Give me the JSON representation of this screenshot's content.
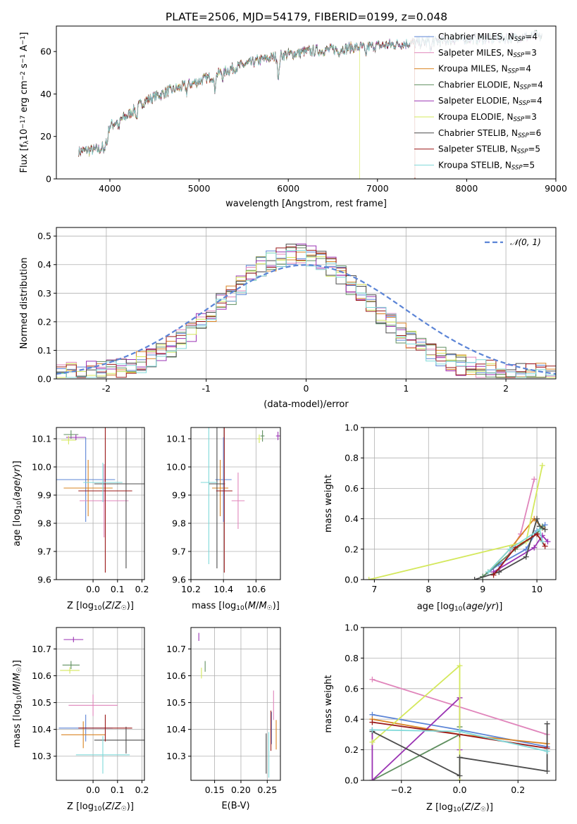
{
  "figure_title": "PLATE=2506, MJD=54179, FIBERID=0199, z=0.048",
  "colors": {
    "Chabrier MILES": "#5b84d6",
    "Salpeter MILES": "#e085bb",
    "Kroupa MILES": "#d98423",
    "Chabrier ELODIE": "#5f8f5f",
    "Salpeter ELODIE": "#9a33b3",
    "Kroupa ELODIE": "#d4e85c",
    "Chabrier STELIB": "#4c4c4c",
    "Salpeter STELIB": "#9b1a1a",
    "Kroupa STELIB": "#7fd9d9",
    "gauss": "#5b84d6",
    "data": "#9a9a9a"
  },
  "chart_data": [
    {
      "id": "spectrum",
      "type": "line",
      "title": "PLATE=2506, MJD=54179, FIBERID=0199, z=0.048",
      "xlabel": "wavelength [Angstrom, rest frame]",
      "ylabel": "Flux [f_λ 10^-17 erg cm^-2 s^-1 A^-1]",
      "xlim": [
        3400,
        9000
      ],
      "ylim": [
        0,
        72
      ],
      "xticks": [
        "4000",
        "5000",
        "6000",
        "7000",
        "8000",
        "9000"
      ],
      "yticks": [
        "0",
        "20",
        "40",
        "60"
      ],
      "grid": false,
      "legend_position": "top-right",
      "continuum_x": [
        3650,
        3900,
        4000,
        4200,
        4400,
        4700,
        5000,
        5300,
        5600,
        5900,
        6200,
        6500,
        6800,
        7100,
        7400,
        7700,
        8000,
        8300,
        8600,
        8850
      ],
      "continuum_y": [
        13,
        14,
        25,
        30,
        37,
        42,
        46,
        51,
        55,
        58,
        60,
        61,
        62,
        63,
        64,
        65,
        66,
        66,
        67,
        67
      ],
      "model_end_wavelength": {
        "Kroupa ELODIE": 6800,
        "Salpeter STELIB": 7420,
        "Kroupa MILES": 7420
      },
      "legend": [
        {
          "name": "Chabrier MILES",
          "label": "Chabrier MILES, N",
          "sub": "SSP",
          "n": "=4"
        },
        {
          "name": "Salpeter MILES",
          "label": "Salpeter MILES, N",
          "sub": "SSP",
          "n": "=3"
        },
        {
          "name": "Kroupa MILES",
          "label": "Kroupa MILES, N",
          "sub": "SSP",
          "n": "=4"
        },
        {
          "name": "Chabrier ELODIE",
          "label": "Chabrier ELODIE, N",
          "sub": "SSP",
          "n": "=4"
        },
        {
          "name": "Salpeter ELODIE",
          "label": "Salpeter ELODIE, N",
          "sub": "SSP",
          "n": "=4"
        },
        {
          "name": "Kroupa ELODIE",
          "label": "Kroupa ELODIE, N",
          "sub": "SSP",
          "n": "=3"
        },
        {
          "name": "Chabrier STELIB",
          "label": "Chabrier STELIB, N",
          "sub": "SSP",
          "n": "=6"
        },
        {
          "name": "Salpeter STELIB",
          "label": "Salpeter STELIB, N",
          "sub": "SSP",
          "n": "=5"
        },
        {
          "name": "Kroupa STELIB",
          "label": "Kroupa STELIB, N",
          "sub": "SSP",
          "n": "=5"
        }
      ]
    },
    {
      "id": "residuals",
      "type": "histogram",
      "xlabel": "(data-model)/error",
      "ylabel": "Normed distribution",
      "xlim": [
        -2.5,
        2.5
      ],
      "ylim": [
        0,
        0.53
      ],
      "xticks": [
        "-2",
        "-1",
        "0",
        "1",
        "2"
      ],
      "yticks": [
        "0.0",
        "0.1",
        "0.2",
        "0.3",
        "0.4",
        "0.5"
      ],
      "grid": true,
      "legend_position": "top-right",
      "legend_label": "𝒩(0, 1)",
      "bin_width": 0.1,
      "bin_start": -2.5
    },
    {
      "id": "age_vs_Z",
      "type": "errorbar",
      "xlabel": "Z [log10(Z/Z☉)]",
      "ylabel": "age  [log10(age/yr)]",
      "xlim": [
        -0.15,
        0.21
      ],
      "ylim": [
        9.6,
        10.14
      ],
      "xticks": [
        -0.0,
        0.1,
        0.2
      ],
      "xtick_labels": [
        "0.0",
        "0.1",
        "0.2"
      ],
      "yticks": [
        9.6,
        9.7,
        9.8,
        9.9,
        10.0,
        10.1
      ],
      "ytick_labels": [
        "9.6",
        "9.7",
        "9.8",
        "9.9",
        "10.0",
        "10.1"
      ],
      "points": [
        {
          "name": "Chabrier MILES",
          "x": -0.03,
          "xerr": 0.12,
          "y": 9.955,
          "yerr": 0.15
        },
        {
          "name": "Salpeter MILES",
          "x": 0.045,
          "xerr": 0.1,
          "y": 9.88,
          "yerr": 0.13
        },
        {
          "name": "Kroupa MILES",
          "x": -0.02,
          "xerr": 0.1,
          "y": 9.925,
          "yerr": 0.1
        },
        {
          "name": "Chabrier ELODIE",
          "x": -0.09,
          "xerr": 0.03,
          "y": 10.115,
          "yerr": 0.015
        },
        {
          "name": "Salpeter ELODIE",
          "x": -0.07,
          "xerr": 0.04,
          "y": 10.105,
          "yerr": 0.01
        },
        {
          "name": "Kroupa ELODIE",
          "x": -0.1,
          "xerr": 0.03,
          "y": 10.095,
          "yerr": 0.015
        },
        {
          "name": "Chabrier STELIB",
          "x": 0.135,
          "xerr": 0.13,
          "y": 9.94,
          "yerr": 0.3
        },
        {
          "name": "Salpeter STELIB",
          "x": 0.05,
          "xerr": 0.11,
          "y": 9.915,
          "yerr": 0.29
        },
        {
          "name": "Kroupa STELIB",
          "x": 0.04,
          "xerr": 0.08,
          "y": 9.945,
          "yerr": 0.07
        }
      ]
    },
    {
      "id": "age_vs_mass",
      "type": "errorbar",
      "xlabel": "mass [log10(M/M☉)]",
      "ylabel": "",
      "xlim": [
        10.2,
        10.75
      ],
      "ylim": [
        9.6,
        10.14
      ],
      "xticks": [
        10.2,
        10.4,
        10.6
      ],
      "xtick_labels": [
        "10.2",
        "10.4",
        "10.6"
      ],
      "yticks": [
        9.6,
        9.7,
        9.8,
        9.9,
        10.0,
        10.1
      ],
      "ytick_labels": [
        "9.6",
        "9.7",
        "9.8",
        "9.9",
        "10.0",
        "10.1"
      ],
      "points": [
        {
          "name": "Chabrier MILES",
          "x": 10.4,
          "xerr": 0.05,
          "y": 9.955,
          "yerr": 0.15
        },
        {
          "name": "Salpeter MILES",
          "x": 10.49,
          "xerr": 0.04,
          "y": 9.88,
          "yerr": 0.1
        },
        {
          "name": "Kroupa MILES",
          "x": 10.38,
          "xerr": 0.05,
          "y": 9.925,
          "yerr": 0.1
        },
        {
          "name": "Chabrier ELODIE",
          "x": 10.64,
          "xerr": 0.012,
          "y": 10.11,
          "yerr": 0.02
        },
        {
          "name": "Salpeter ELODIE",
          "x": 10.735,
          "xerr": 0.012,
          "y": 10.11,
          "yerr": 0.015
        },
        {
          "name": "Kroupa ELODIE",
          "x": 10.62,
          "xerr": 0.012,
          "y": 10.1,
          "yerr": 0.015
        },
        {
          "name": "Chabrier STELIB",
          "x": 10.36,
          "xerr": 0.05,
          "y": 9.94,
          "yerr": 0.3
        },
        {
          "name": "Salpeter STELIB",
          "x": 10.405,
          "xerr": 0.05,
          "y": 9.915,
          "yerr": 0.29
        },
        {
          "name": "Kroupa STELIB",
          "x": 10.31,
          "xerr": 0.05,
          "y": 9.945,
          "yerr": 0.29
        }
      ]
    },
    {
      "id": "weight_vs_age",
      "type": "line",
      "xlabel": "age  [log10(age/yr)]",
      "ylabel": "mass weight",
      "xlim": [
        6.8,
        10.35
      ],
      "ylim": [
        0,
        1.0
      ],
      "xticks": [
        7,
        8,
        9,
        10
      ],
      "xtick_labels": [
        "7",
        "8",
        "9",
        "10"
      ],
      "yticks": [
        0,
        0.2,
        0.4,
        0.6,
        0.8,
        1.0
      ],
      "ytick_labels": [
        "0.0",
        "0.2",
        "0.4",
        "0.6",
        "0.8",
        "1.0"
      ],
      "grid": true,
      "series": [
        {
          "name": "Chabrier MILES",
          "x": [
            9.0,
            9.3,
            9.8,
            10.0,
            10.15
          ],
          "y": [
            0.02,
            0.1,
            0.2,
            0.32,
            0.36
          ]
        },
        {
          "name": "Salpeter MILES",
          "x": [
            9.3,
            9.7,
            9.95
          ],
          "y": [
            0.06,
            0.3,
            0.66
          ]
        },
        {
          "name": "Kroupa MILES",
          "x": [
            9.1,
            9.5,
            9.95,
            10.1
          ],
          "y": [
            0.05,
            0.2,
            0.4,
            0.34
          ]
        },
        {
          "name": "Chabrier ELODIE",
          "x": [
            9.0,
            9.6,
            10.0,
            10.1
          ],
          "y": [
            0.02,
            0.2,
            0.3,
            0.35
          ]
        },
        {
          "name": "Salpeter ELODIE",
          "x": [
            9.2,
            9.95,
            10.1,
            10.2
          ],
          "y": [
            0.05,
            0.21,
            0.29,
            0.25
          ]
        },
        {
          "name": "Kroupa ELODIE",
          "x": [
            6.9,
            9.8,
            10.1
          ],
          "y": [
            0.0,
            0.25,
            0.75
          ]
        },
        {
          "name": "Chabrier STELIB",
          "x": [
            8.85,
            9.3,
            9.8,
            10.0,
            10.05,
            10.15
          ],
          "y": [
            0.0,
            0.05,
            0.15,
            0.4,
            0.35,
            0.33
          ]
        },
        {
          "name": "Salpeter STELIB",
          "x": [
            9.2,
            9.6,
            10.0,
            10.15
          ],
          "y": [
            0.03,
            0.21,
            0.3,
            0.22
          ]
        },
        {
          "name": "Kroupa STELIB",
          "x": [
            9.1,
            9.5,
            10.05,
            10.1
          ],
          "y": [
            0.05,
            0.2,
            0.33,
            0.25
          ]
        }
      ]
    },
    {
      "id": "mass_vs_Z",
      "type": "errorbar",
      "xlabel": "Z [log10(Z/Z☉)]",
      "ylabel": "mass [log10(M/M☉)]",
      "xlim": [
        -0.15,
        0.21
      ],
      "ylim": [
        10.21,
        10.78
      ],
      "xticks": [
        -0.0,
        0.1,
        0.2
      ],
      "xtick_labels": [
        "0.0",
        "0.1",
        "0.2"
      ],
      "yticks": [
        10.3,
        10.4,
        10.5,
        10.6,
        10.7
      ],
      "ytick_labels": [
        "10.3",
        "10.4",
        "10.5",
        "10.6",
        "10.7"
      ],
      "points": [
        {
          "name": "Chabrier MILES",
          "x": -0.03,
          "xerr": 0.11,
          "y": 10.405,
          "yerr": 0.05
        },
        {
          "name": "Salpeter MILES",
          "x": 0.0,
          "xerr": 0.1,
          "y": 10.49,
          "yerr": 0.04
        },
        {
          "name": "Kroupa MILES",
          "x": -0.04,
          "xerr": 0.09,
          "y": 10.38,
          "yerr": 0.05
        },
        {
          "name": "Chabrier ELODIE",
          "x": -0.09,
          "xerr": 0.035,
          "y": 10.64,
          "yerr": 0.015
        },
        {
          "name": "Salpeter ELODIE",
          "x": -0.08,
          "xerr": 0.04,
          "y": 10.735,
          "yerr": 0.01
        },
        {
          "name": "Kroupa ELODIE",
          "x": -0.095,
          "xerr": 0.04,
          "y": 10.62,
          "yerr": 0.012
        },
        {
          "name": "Chabrier STELIB",
          "x": 0.135,
          "xerr": 0.13,
          "y": 10.36,
          "yerr": 0.05
        },
        {
          "name": "Salpeter STELIB",
          "x": 0.05,
          "xerr": 0.11,
          "y": 10.405,
          "yerr": 0.05
        },
        {
          "name": "Kroupa STELIB",
          "x": 0.04,
          "xerr": 0.11,
          "y": 10.305,
          "yerr": 0.07
        }
      ]
    },
    {
      "id": "mass_vs_ebv",
      "type": "errorbar",
      "xlabel": "E(B-V)",
      "ylabel": "",
      "xlim": [
        0.105,
        0.275
      ],
      "ylim": [
        10.21,
        10.78
      ],
      "xticks": [
        0.15,
        0.2,
        0.25
      ],
      "xtick_labels": [
        "0.15",
        "0.20",
        "0.25"
      ],
      "yticks": [
        10.3,
        10.4,
        10.5,
        10.6,
        10.7
      ],
      "ytick_labels": [
        "10.3",
        "10.4",
        "10.5",
        "10.6",
        "10.7"
      ],
      "points": [
        {
          "name": "Chabrier MILES",
          "x": 0.258,
          "xerr": 0,
          "y": 10.405,
          "yerr": 0.06
        },
        {
          "name": "Salpeter MILES",
          "x": 0.262,
          "xerr": 0,
          "y": 10.49,
          "yerr": 0.055
        },
        {
          "name": "Kroupa MILES",
          "x": 0.267,
          "xerr": 0,
          "y": 10.38,
          "yerr": 0.055
        },
        {
          "name": "Chabrier ELODIE",
          "x": 0.132,
          "xerr": 0,
          "y": 10.635,
          "yerr": 0.02
        },
        {
          "name": "Salpeter ELODIE",
          "x": 0.12,
          "xerr": 0,
          "y": 10.745,
          "yerr": 0.015
        },
        {
          "name": "Kroupa ELODIE",
          "x": 0.125,
          "xerr": 0,
          "y": 10.61,
          "yerr": 0.02
        },
        {
          "name": "Chabrier STELIB",
          "x": 0.248,
          "xerr": 0,
          "y": 10.31,
          "yerr": 0.075
        },
        {
          "name": "Salpeter STELIB",
          "x": 0.257,
          "xerr": 0,
          "y": 10.395,
          "yerr": 0.075
        },
        {
          "name": "Kroupa STELIB",
          "x": 0.253,
          "xerr": 0,
          "y": 10.305,
          "yerr": 0.085
        }
      ]
    },
    {
      "id": "weight_vs_Z",
      "type": "line",
      "xlabel": "Z [log10(Z/Z☉)]",
      "ylabel": "mass weight",
      "xlim": [
        -0.33,
        0.33
      ],
      "ylim": [
        0,
        1.0
      ],
      "xticks": [
        -0.2,
        0.0,
        0.2
      ],
      "xtick_labels": [
        "−0.2",
        "0.0",
        "0.2"
      ],
      "yticks": [
        0,
        0.2,
        0.4,
        0.6,
        0.8,
        1.0
      ],
      "ytick_labels": [
        "0.0",
        "0.2",
        "0.4",
        "0.6",
        "0.8",
        "1.0"
      ],
      "grid": true,
      "series": [
        {
          "name": "Chabrier MILES",
          "x": [
            -0.3,
            0.0,
            0.3
          ],
          "y": [
            0.43,
            0.33,
            0.22
          ]
        },
        {
          "name": "Salpeter MILES",
          "x": [
            -0.3,
            0.3
          ],
          "y": [
            0.66,
            0.3
          ]
        },
        {
          "name": "Kroupa MILES",
          "x": [
            -0.3,
            0.0,
            0.3
          ],
          "y": [
            0.4,
            0.3,
            0.24
          ]
        },
        {
          "name": "Chabrier ELODIE",
          "x": [
            -0.3,
            0.0,
            0.0
          ],
          "y": [
            0.0,
            0.3,
            0.35
          ]
        },
        {
          "name": "Salpeter ELODIE",
          "x": [
            -0.3,
            -0.3,
            0.0,
            0.0
          ],
          "y": [
            0.33,
            0.0,
            0.54,
            0.2
          ]
        },
        {
          "name": "Kroupa ELODIE",
          "x": [
            -0.3,
            0.0,
            0.0
          ],
          "y": [
            0.25,
            0.75,
            0.0
          ]
        },
        {
          "name": "Chabrier STELIB",
          "x": [
            -0.3,
            0.0,
            0.0,
            0.3,
            0.3
          ],
          "y": [
            0.32,
            0.03,
            0.15,
            0.06,
            0.37
          ]
        },
        {
          "name": "Salpeter STELIB",
          "x": [
            -0.3,
            0.0,
            0.3
          ],
          "y": [
            0.38,
            0.3,
            0.21
          ]
        },
        {
          "name": "Kroupa STELIB",
          "x": [
            -0.3,
            0.0,
            0.3
          ],
          "y": [
            0.33,
            0.32,
            0.19
          ]
        }
      ]
    }
  ]
}
